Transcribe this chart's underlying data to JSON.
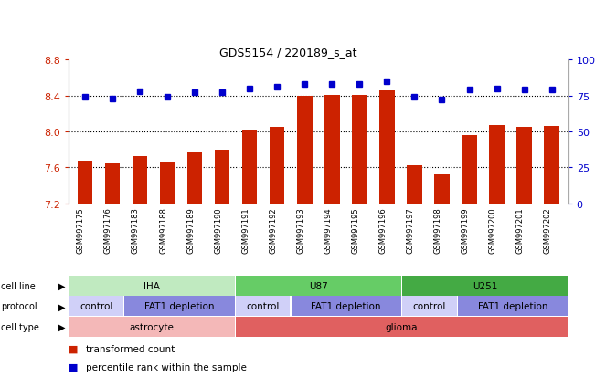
{
  "title": "GDS5154 / 220189_s_at",
  "samples": [
    "GSM997175",
    "GSM997176",
    "GSM997183",
    "GSM997188",
    "GSM997189",
    "GSM997190",
    "GSM997191",
    "GSM997192",
    "GSM997193",
    "GSM997194",
    "GSM997195",
    "GSM997196",
    "GSM997197",
    "GSM997198",
    "GSM997199",
    "GSM997200",
    "GSM997201",
    "GSM997202"
  ],
  "bar_values": [
    7.67,
    7.64,
    7.72,
    7.66,
    7.78,
    7.8,
    8.02,
    8.05,
    8.4,
    8.41,
    8.41,
    8.46,
    7.62,
    7.52,
    7.96,
    8.07,
    8.05,
    8.06
  ],
  "dot_values": [
    74,
    73,
    78,
    74,
    77,
    77,
    80,
    81,
    83,
    83,
    83,
    85,
    74,
    72,
    79,
    80,
    79,
    79
  ],
  "bar_color": "#cc2200",
  "dot_color": "#0000cc",
  "ylim_left": [
    7.2,
    8.8
  ],
  "ylim_right": [
    0,
    100
  ],
  "yticks_left": [
    7.2,
    7.6,
    8.0,
    8.4,
    8.8
  ],
  "yticks_right": [
    0,
    25,
    50,
    75,
    100
  ],
  "hlines": [
    7.6,
    8.0,
    8.4
  ],
  "plot_bg": "#ffffff",
  "fig_bg": "#ffffff",
  "tick_label_bg": "#d8d8d8",
  "cell_line_groups": [
    {
      "label": "IHA",
      "start": 0,
      "end": 6,
      "color": "#c0eac0"
    },
    {
      "label": "U87",
      "start": 6,
      "end": 12,
      "color": "#66cc66"
    },
    {
      "label": "U251",
      "start": 12,
      "end": 18,
      "color": "#44aa44"
    }
  ],
  "protocol_groups": [
    {
      "label": "control",
      "start": 0,
      "end": 2,
      "color": "#d0d0f8"
    },
    {
      "label": "FAT1 depletion",
      "start": 2,
      "end": 6,
      "color": "#8888dd"
    },
    {
      "label": "control",
      "start": 6,
      "end": 8,
      "color": "#d0d0f8"
    },
    {
      "label": "FAT1 depletion",
      "start": 8,
      "end": 12,
      "color": "#8888dd"
    },
    {
      "label": "control",
      "start": 12,
      "end": 14,
      "color": "#d0d0f8"
    },
    {
      "label": "FAT1 depletion",
      "start": 14,
      "end": 18,
      "color": "#8888dd"
    }
  ],
  "cell_type_groups": [
    {
      "label": "astrocyte",
      "start": 0,
      "end": 6,
      "color": "#f4b8b8"
    },
    {
      "label": "glioma",
      "start": 6,
      "end": 18,
      "color": "#e06060"
    }
  ],
  "legend_items": [
    {
      "color": "#cc2200",
      "label": "transformed count"
    },
    {
      "color": "#0000cc",
      "label": "percentile rank within the sample"
    }
  ],
  "row_labels": [
    "cell line",
    "protocol",
    "cell type"
  ]
}
